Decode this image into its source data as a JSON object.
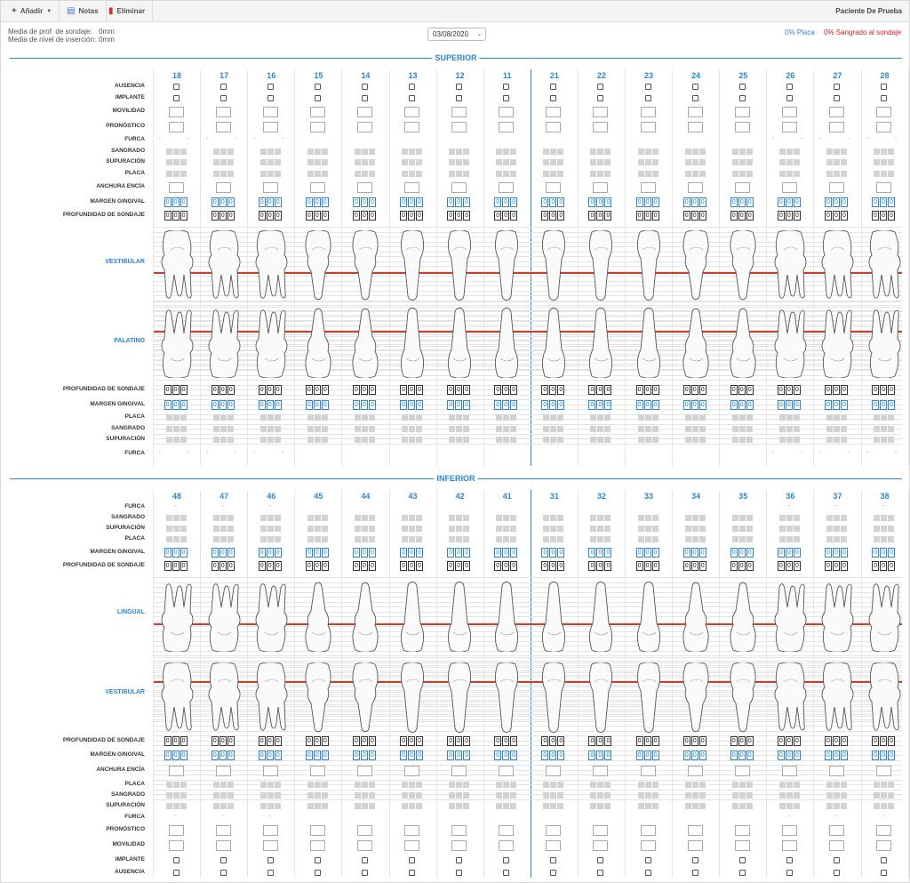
{
  "toolbar": {
    "add_label": "Añadir",
    "notes_label": "Notas",
    "delete_label": "Eliminar",
    "patient": "Paciente De Prueba"
  },
  "stats": {
    "probe_depth_label": "Media de prof. de sondaje:",
    "probe_depth_value": "0mm",
    "insertion_label": "Media de nivel de inserción:",
    "insertion_value": "0mm",
    "plaque": "0% Placa",
    "bleeding": "0% Sangrado al sondaje"
  },
  "date": {
    "selected": "03/08/2020"
  },
  "upper": {
    "title": "SUPERIOR",
    "teeth": [
      "18",
      "17",
      "16",
      "15",
      "14",
      "13",
      "12",
      "11",
      "21",
      "22",
      "23",
      "24",
      "25",
      "26",
      "27",
      "28"
    ],
    "rows_top": [
      "AUSENCIA",
      "IMPLANTE",
      "MOVILIDAD",
      "PRONÓSTICO",
      "FURCA",
      "SANGRADO",
      "SUPURACIÓN",
      "PLACA",
      "ANCHURA ENCÍA",
      "MARGEN GINGIVAL",
      "PROFUNDIDAD DE SONDAJE"
    ],
    "side_top": "VESTIBULAR",
    "side_bottom": "PALATINO",
    "rows_bottom": [
      "PROFUNDIDAD DE SONDAJE",
      "MARGEN GINGIVAL",
      "PLACA",
      "SANGRADO",
      "SUPURACIÓN",
      "FURCA"
    ]
  },
  "lower": {
    "title": "INFERIOR",
    "teeth": [
      "48",
      "47",
      "46",
      "45",
      "44",
      "43",
      "42",
      "41",
      "31",
      "32",
      "33",
      "34",
      "35",
      "36",
      "37",
      "38"
    ],
    "rows_top": [
      "FURCA",
      "SANGRADO",
      "SUPURACIÓN",
      "PLACA",
      "MARGEN GINGIVAL",
      "PROFUNDIDAD DE SONDAJE"
    ],
    "side_top": "LINGUAL",
    "side_bottom": "VESTIBULAR",
    "rows_bottom": [
      "PROFUNDIDAD DE SONDAJE",
      "MARGEN GINGIVAL",
      "ANCHURA ENCÍA",
      "PLACA",
      "SANGRADO",
      "SUPURACIÓN",
      "FURCA",
      "PRONÓSTICO",
      "MOVILIDAD",
      "IMPLANTE",
      "AUSENCIA"
    ]
  },
  "probe_value": "0",
  "furca_mark": "-",
  "colors": {
    "accent": "#2a86d1",
    "gingival_line": "#c8402a",
    "bleeding": "#d02020"
  }
}
